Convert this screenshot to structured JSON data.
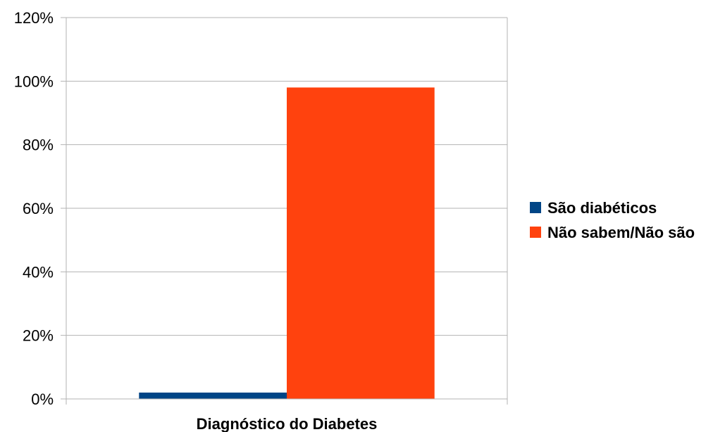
{
  "chart_data": {
    "type": "bar",
    "categories": [
      "Diagnóstico do Diabetes"
    ],
    "series": [
      {
        "name": "São diabéticos",
        "values": [
          0.02
        ],
        "color": "#004586"
      },
      {
        "name": "Não sabem/Não são",
        "values": [
          0.98
        ],
        "color": "#ff420e"
      }
    ],
    "ylim": [
      0,
      1.2
    ],
    "yticks": [
      {
        "value": 0,
        "label": "0%"
      },
      {
        "value": 0.2,
        "label": "20%"
      },
      {
        "value": 0.4,
        "label": "40%"
      },
      {
        "value": 0.6,
        "label": "60%"
      },
      {
        "value": 0.8,
        "label": "80%"
      },
      {
        "value": 1.0,
        "label": "100%"
      },
      {
        "value": 1.2,
        "label": "120%"
      }
    ],
    "grid": true,
    "legend": "right",
    "gridColor": "#b3b3b3"
  }
}
